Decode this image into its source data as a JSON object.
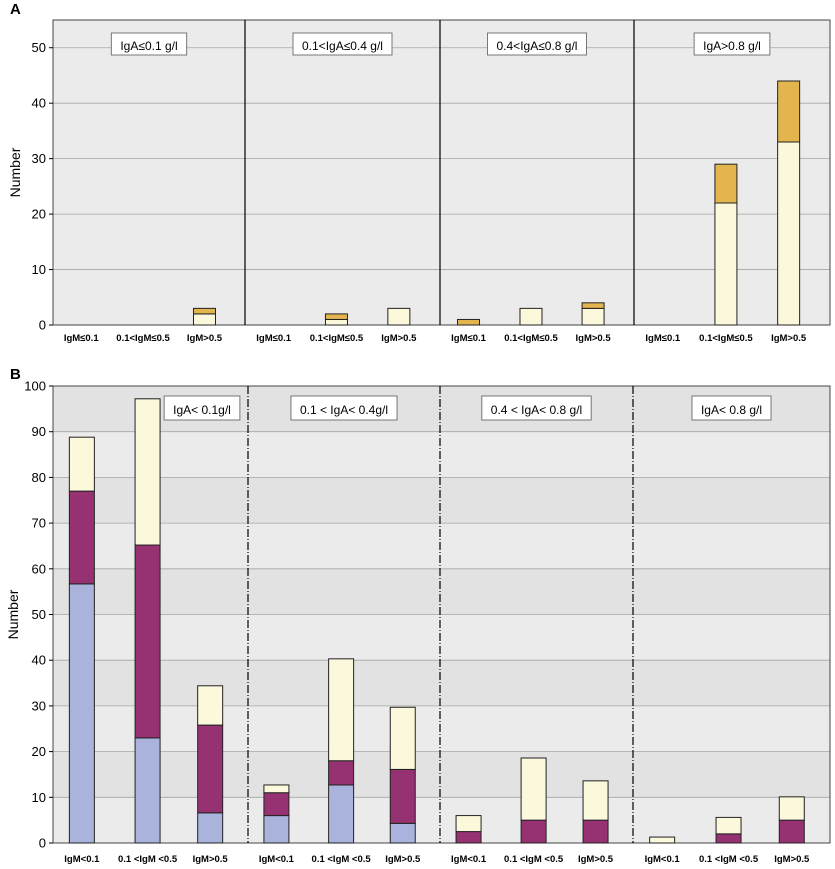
{
  "chart_data": [
    {
      "panel": "A",
      "type": "stacked-bar",
      "ylabel": "Number",
      "ylim": [
        0,
        55
      ],
      "yticks": [
        0,
        10,
        20,
        30,
        40,
        50
      ],
      "colors": {
        "lower": "#fbf8dc",
        "upper": "#e3b54f"
      },
      "groups": [
        {
          "label": "IgA≤0.1 g/l",
          "bars": [
            {
              "category": "IgM≤0.1",
              "values": [
                0,
                0
              ]
            },
            {
              "category": "0.1<IgM≤0.5",
              "values": [
                0,
                0
              ]
            },
            {
              "category": "IgM>0.5",
              "values": [
                2,
                1
              ]
            }
          ]
        },
        {
          "label": "0.1<IgA≤0.4 g/l",
          "bars": [
            {
              "category": "IgM≤0.1",
              "values": [
                0,
                0
              ]
            },
            {
              "category": "0.1<IgM≤0.5",
              "values": [
                1,
                1
              ]
            },
            {
              "category": "IgM>0.5",
              "values": [
                3,
                0
              ]
            }
          ]
        },
        {
          "label": "0.4<IgA≤0.8 g/l",
          "bars": [
            {
              "category": "IgM≤0.1",
              "values": [
                0,
                1
              ]
            },
            {
              "category": "0.1<IgM≤0.5",
              "values": [
                3,
                0
              ]
            },
            {
              "category": "IgM>0.5",
              "values": [
                3,
                1
              ]
            }
          ]
        },
        {
          "label": "IgA>0.8 g/l",
          "bars": [
            {
              "category": "IgM≤0.1",
              "values": [
                0,
                0
              ]
            },
            {
              "category": "0.1<IgM≤0.5",
              "values": [
                22,
                7
              ]
            },
            {
              "category": "IgM>0.5",
              "values": [
                33,
                11
              ]
            }
          ]
        }
      ]
    },
    {
      "panel": "B",
      "type": "stacked-bar",
      "ylabel": "Number",
      "ylim": [
        0,
        100
      ],
      "yticks": [
        0,
        10,
        20,
        30,
        40,
        50,
        60,
        70,
        80,
        90,
        100
      ],
      "colors": {
        "bottom": "#a9b3dc",
        "middle": "#963272",
        "top": "#fbf8dc"
      },
      "groups": [
        {
          "label": "IgA< 0.1g/l",
          "bars": [
            {
              "category": "IgM<0.1",
              "values": [
                56.7,
                20.3,
                11.8
              ]
            },
            {
              "category": "0.1 <IgM <0.5",
              "values": [
                23,
                42.2,
                32
              ]
            },
            {
              "category": "IgM>0.5",
              "values": [
                6.6,
                19.2,
                8.6
              ]
            }
          ]
        },
        {
          "label": "0.1 < IgA< 0.4g/l",
          "bars": [
            {
              "category": "IgM<0.1",
              "values": [
                6,
                5,
                1.7
              ]
            },
            {
              "category": "0.1 <IgM <0.5",
              "values": [
                12.7,
                5.3,
                22.3
              ]
            },
            {
              "category": "IgM>0.5",
              "values": [
                4.3,
                11.8,
                13.6
              ]
            }
          ]
        },
        {
          "label": "0.4 < IgA< 0.8 g/l",
          "bars": [
            {
              "category": "IgM<0.1",
              "values": [
                0,
                2.5,
                3.5
              ]
            },
            {
              "category": "0.1 <IgM <0.5",
              "values": [
                0,
                5,
                13.6
              ]
            },
            {
              "category": "IgM>0.5",
              "values": [
                0,
                5,
                8.6
              ]
            }
          ]
        },
        {
          "label": "IgA< 0.8 g/l",
          "bars": [
            {
              "category": "IgM<0.1",
              "values": [
                0,
                0,
                1.3
              ]
            },
            {
              "category": "0.1 <IgM <0.5",
              "values": [
                0,
                2,
                3.6
              ]
            },
            {
              "category": "IgM>0.5",
              "values": [
                0,
                5,
                5.1
              ]
            }
          ]
        }
      ]
    }
  ]
}
